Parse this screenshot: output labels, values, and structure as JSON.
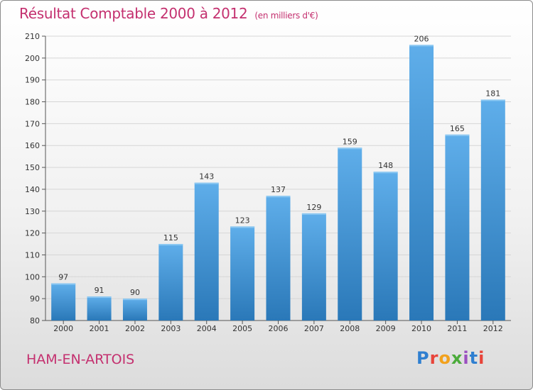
{
  "header": {
    "title": "Résultat Comptable 2000 à 2012",
    "subtitle": "(en milliers d'€)"
  },
  "footer": {
    "town": "HAM-EN-ARTOIS",
    "logo_text": "Proxiti"
  },
  "colors": {
    "bar_top": "#5faeea",
    "bar_bottom": "#2a78b8",
    "accent": "#c4306f",
    "grid": "#d6d6d6"
  },
  "chart_data": {
    "type": "bar",
    "title": "Résultat Comptable 2000 à 2012",
    "xlabel": "",
    "ylabel": "",
    "categories": [
      "2000",
      "2001",
      "2002",
      "2003",
      "2004",
      "2005",
      "2006",
      "2007",
      "2008",
      "2009",
      "2010",
      "2011",
      "2012"
    ],
    "values": [
      97,
      91,
      90,
      115,
      143,
      123,
      137,
      129,
      159,
      148,
      206,
      165,
      181
    ],
    "ylim": [
      80,
      210
    ],
    "yticks": [
      80,
      90,
      100,
      110,
      120,
      130,
      140,
      150,
      160,
      170,
      180,
      190,
      200,
      210
    ],
    "grid": true
  }
}
